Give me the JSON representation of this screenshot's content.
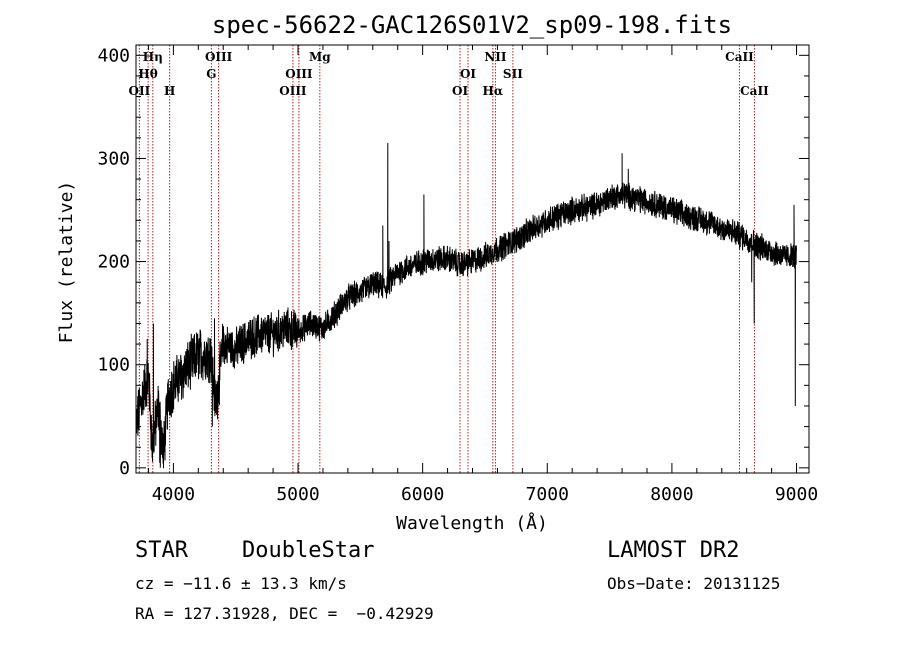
{
  "chart_data": {
    "type": "line",
    "title": "spec-56622-GAC126S01V2_sp09-198.fits",
    "xlabel": "Wavelength (Å)",
    "ylabel": "Flux (relative)",
    "xlim": [
      3700,
      9100
    ],
    "ylim": [
      -5,
      410
    ],
    "xticks": [
      4000,
      5000,
      6000,
      7000,
      8000,
      9000
    ],
    "yticks": [
      0,
      100,
      200,
      300,
      400
    ],
    "grid": false,
    "line_color": "#000000",
    "marker_color": "#b22222",
    "spectrum": {
      "name": "flux",
      "anchors": [
        [
          3700,
          40
        ],
        [
          3750,
          70
        ],
        [
          3800,
          90
        ],
        [
          3830,
          20
        ],
        [
          3880,
          60
        ],
        [
          3920,
          15
        ],
        [
          3960,
          70
        ],
        [
          4000,
          80
        ],
        [
          4100,
          95
        ],
        [
          4200,
          110
        ],
        [
          4300,
          110
        ],
        [
          4340,
          60
        ],
        [
          4400,
          120
        ],
        [
          4500,
          115
        ],
        [
          4600,
          125
        ],
        [
          4700,
          130
        ],
        [
          4800,
          130
        ],
        [
          4900,
          135
        ],
        [
          5000,
          132
        ],
        [
          5100,
          140
        ],
        [
          5200,
          135
        ],
        [
          5300,
          150
        ],
        [
          5400,
          165
        ],
        [
          5500,
          170
        ],
        [
          5600,
          178
        ],
        [
          5700,
          175
        ],
        [
          5800,
          190
        ],
        [
          5900,
          195
        ],
        [
          6000,
          200
        ],
        [
          6100,
          202
        ],
        [
          6200,
          203
        ],
        [
          6300,
          197
        ],
        [
          6400,
          200
        ],
        [
          6500,
          205
        ],
        [
          6600,
          212
        ],
        [
          6700,
          218
        ],
        [
          6800,
          225
        ],
        [
          6900,
          233
        ],
        [
          7000,
          240
        ],
        [
          7100,
          245
        ],
        [
          7200,
          250
        ],
        [
          7300,
          252
        ],
        [
          7400,
          255
        ],
        [
          7500,
          262
        ],
        [
          7600,
          265
        ],
        [
          7700,
          262
        ],
        [
          7800,
          258
        ],
        [
          7900,
          255
        ],
        [
          8000,
          250
        ],
        [
          8100,
          245
        ],
        [
          8200,
          242
        ],
        [
          8300,
          238
        ],
        [
          8400,
          232
        ],
        [
          8500,
          228
        ],
        [
          8600,
          222
        ],
        [
          8700,
          215
        ],
        [
          8800,
          210
        ],
        [
          8900,
          205
        ],
        [
          9000,
          205
        ]
      ],
      "features": [
        [
          3790,
          125
        ],
        [
          3840,
          140
        ],
        [
          3890,
          5
        ],
        [
          3895,
          0
        ],
        [
          4312,
          40
        ],
        [
          4330,
          145
        ],
        [
          5680,
          235
        ],
        [
          5720,
          315
        ],
        [
          5730,
          220
        ],
        [
          6010,
          265
        ],
        [
          7600,
          305
        ],
        [
          7650,
          290
        ],
        [
          8640,
          180
        ],
        [
          8660,
          140
        ],
        [
          8980,
          255
        ],
        [
          8990,
          60
        ]
      ]
    },
    "lines": [
      {
        "label": "Hη",
        "x": 3835,
        "row": 0
      },
      {
        "label": "Hθ",
        "x": 3797,
        "row": 1
      },
      {
        "label": "OII",
        "x": 3727,
        "row": 2
      },
      {
        "label": "H",
        "x": 3970,
        "row": 2
      },
      {
        "label": "OIII",
        "x": 4363,
        "row": 0
      },
      {
        "label": "G",
        "x": 4305,
        "row": 1
      },
      {
        "label": "Mg",
        "x": 5175,
        "row": 0
      },
      {
        "label": "OIII",
        "x": 5007,
        "row": 1
      },
      {
        "label": "OIII",
        "x": 4959,
        "row": 2
      },
      {
        "label": "NII",
        "x": 6584,
        "row": 0
      },
      {
        "label": "OI",
        "x": 6364,
        "row": 1
      },
      {
        "label": "SII",
        "x": 6724,
        "row": 1
      },
      {
        "label": "OI",
        "x": 6300,
        "row": 2
      },
      {
        "label": "Hα",
        "x": 6563,
        "row": 2
      },
      {
        "label": "CaII",
        "x": 8542,
        "row": 0
      },
      {
        "label": "CaII",
        "x": 8662,
        "row": 2
      }
    ]
  },
  "info": {
    "object_class": "STAR",
    "subclass": "DoubleStar",
    "survey": "LAMOST DR2",
    "cz": "cz = −11.6 ± 13.3 km/s",
    "obs_date": "Obs−Date: 20131125",
    "coords": "RA = 127.31928, DEC =  −0.42929"
  }
}
